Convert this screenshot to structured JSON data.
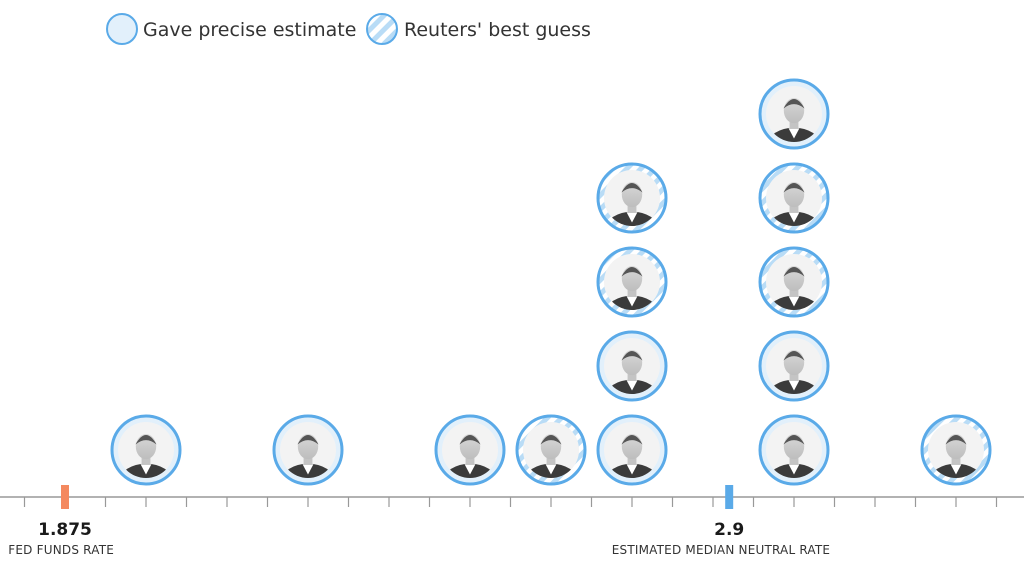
{
  "legend": {
    "precise_label": "Gave precise estimate",
    "guess_label": "Reuters' best guess"
  },
  "colors": {
    "ring": "#5aaae8",
    "stripe": "#5aaae8",
    "fill_light": "#e2f0fb",
    "axis": "#999999",
    "fed_marker": "#f4895f",
    "median_marker": "#5aaae8",
    "text": "#333333"
  },
  "chart_data": {
    "type": "scatter",
    "title": "",
    "xlabel": "",
    "ylabel": "",
    "xlim": [
      1.875,
      3.5
    ],
    "x_step": 0.125,
    "markers": [
      {
        "value": 1.875,
        "value_label": "1.875",
        "caption": "FED FUNDS RATE",
        "color_key": "fed_marker"
      },
      {
        "value": 2.9,
        "value_label": "2.9",
        "caption": "ESTIMATED MEDIAN NEUTRAL RATE",
        "color_key": "median_marker"
      }
    ],
    "points": [
      {
        "x": 2.0,
        "stack": 1,
        "kind": "precise"
      },
      {
        "x": 2.25,
        "stack": 1,
        "kind": "precise"
      },
      {
        "x": 2.5,
        "stack": 1,
        "kind": "precise"
      },
      {
        "x": 2.625,
        "stack": 1,
        "kind": "guess"
      },
      {
        "x": 2.75,
        "stack": 1,
        "kind": "precise"
      },
      {
        "x": 2.75,
        "stack": 2,
        "kind": "precise"
      },
      {
        "x": 2.75,
        "stack": 3,
        "kind": "guess"
      },
      {
        "x": 2.75,
        "stack": 4,
        "kind": "guess"
      },
      {
        "x": 3.0,
        "stack": 1,
        "kind": "precise"
      },
      {
        "x": 3.0,
        "stack": 2,
        "kind": "precise"
      },
      {
        "x": 3.0,
        "stack": 3,
        "kind": "guess"
      },
      {
        "x": 3.0,
        "stack": 4,
        "kind": "guess"
      },
      {
        "x": 3.0,
        "stack": 5,
        "kind": "precise"
      },
      {
        "x": 3.25,
        "stack": 1,
        "kind": "guess"
      }
    ]
  }
}
